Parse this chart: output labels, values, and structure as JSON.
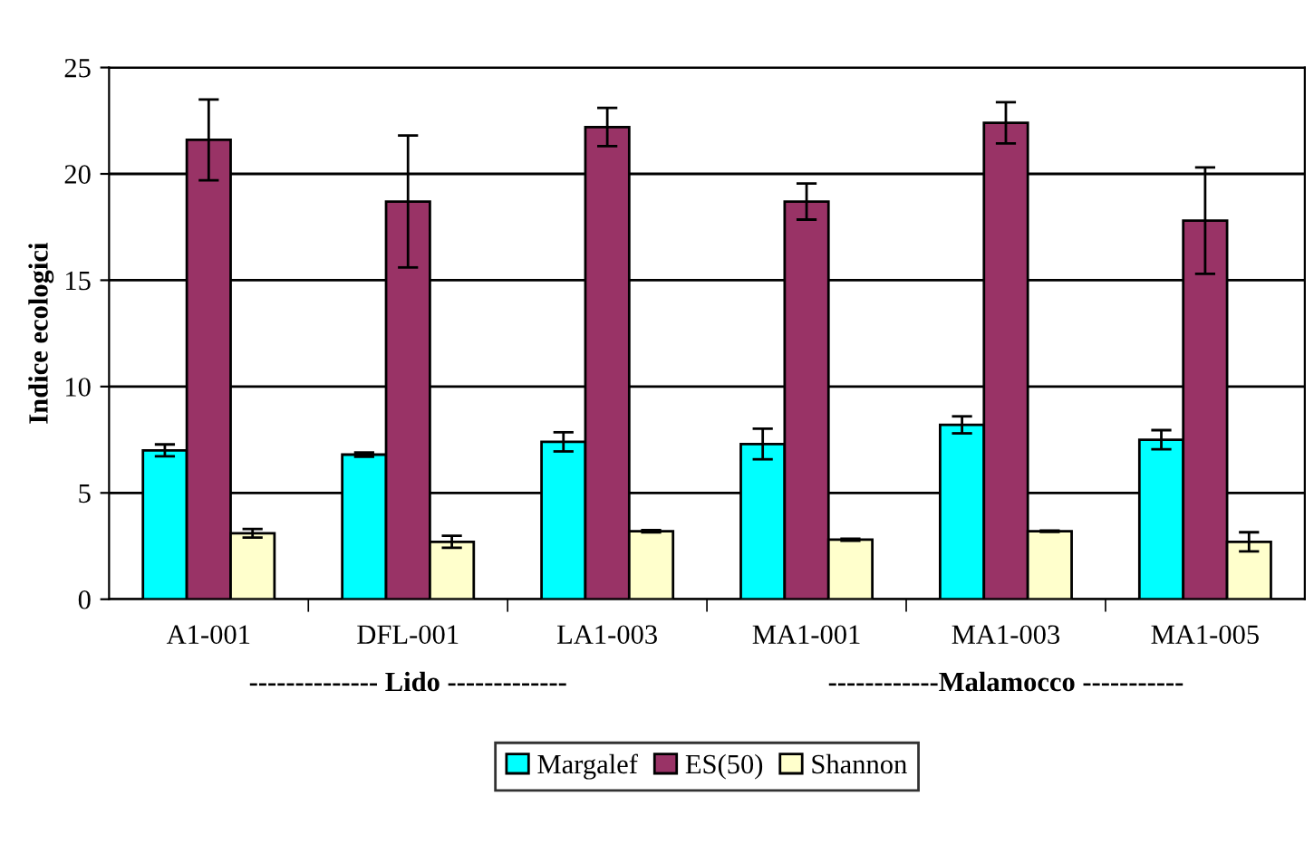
{
  "chart_data": {
    "type": "bar",
    "ylabel": "Indice ecologici",
    "categories": [
      "A1-001",
      "DFL-001",
      "LA1-003",
      "MA1-001",
      "MA1-003",
      "MA1-005"
    ],
    "series": [
      {
        "name": "Margalef",
        "color": "#00ffff",
        "values": [
          7.0,
          6.8,
          7.4,
          7.3,
          8.2,
          7.5
        ],
        "errors": [
          0.28,
          0.1,
          0.45,
          0.72,
          0.4,
          0.45
        ]
      },
      {
        "name": "ES(50)",
        "color": "#993366",
        "values": [
          21.6,
          18.7,
          22.2,
          18.7,
          22.4,
          17.8
        ],
        "errors": [
          1.9,
          3.1,
          0.9,
          0.85,
          0.97,
          2.5
        ]
      },
      {
        "name": "Shannon",
        "color": "#ffffcc",
        "values": [
          3.1,
          2.7,
          3.2,
          2.8,
          3.2,
          2.7
        ],
        "errors": [
          0.2,
          0.28,
          0.05,
          0.05,
          0.03,
          0.45
        ]
      }
    ],
    "annotations": [
      "-------------- Lido -------------",
      "------------Malamocco -----------"
    ],
    "ylim": [
      0,
      25
    ],
    "yticks": [
      0,
      5,
      10,
      15,
      20,
      25
    ],
    "grid": "y",
    "legend": "bottom"
  }
}
